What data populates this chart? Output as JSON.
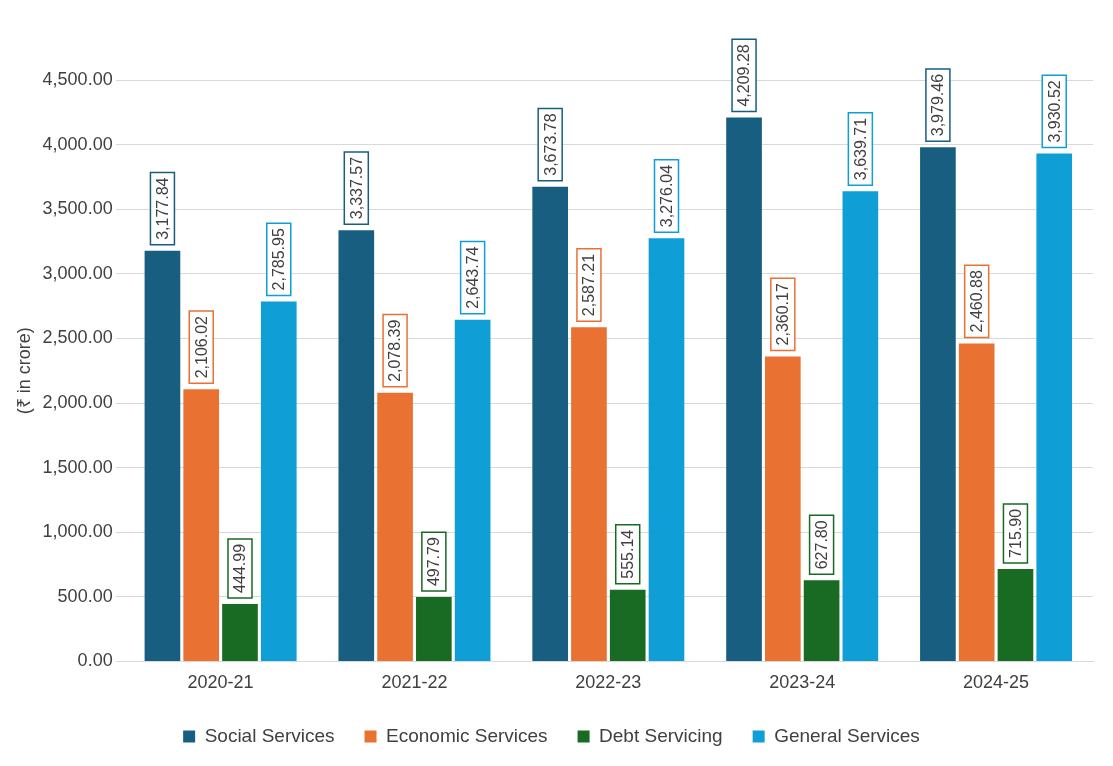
{
  "chart_data": {
    "type": "bar",
    "ylabel": "(₹ in crore)",
    "categories": [
      "2020-21",
      "2021-22",
      "2022-23",
      "2023-24",
      "2024-25"
    ],
    "series": [
      {
        "name": "Social Services",
        "color": "#185e80",
        "values": [
          3177.84,
          3337.57,
          3673.78,
          4209.28,
          3979.46
        ],
        "value_labels": [
          "3,177.84",
          "3,337.57",
          "3,673.78",
          "4,209.28",
          "3,979.46"
        ]
      },
      {
        "name": "Economic Services",
        "color": "#e97132",
        "values": [
          2106.02,
          2078.39,
          2587.21,
          2360.17,
          2460.88
        ],
        "value_labels": [
          "2,106.02",
          "2,078.39",
          "2,587.21",
          "2,360.17",
          "2,460.88"
        ]
      },
      {
        "name": "Debt Servicing",
        "color": "#196b24",
        "values": [
          444.99,
          497.79,
          555.14,
          627.8,
          715.9
        ],
        "value_labels": [
          "444.99",
          "497.79",
          "555.14",
          "627.80",
          "715.90"
        ]
      },
      {
        "name": "General Services",
        "color": "#0f9ed5",
        "values": [
          2785.95,
          2643.74,
          3276.04,
          3639.71,
          3930.52
        ],
        "value_labels": [
          "2,785.95",
          "2,643.74",
          "3,276.04",
          "3,639.71",
          "3,930.52"
        ]
      }
    ],
    "ylim": [
      0,
      4500
    ],
    "yticks": [
      {
        "value": 0,
        "label": "0.00"
      },
      {
        "value": 500,
        "label": "500.00"
      },
      {
        "value": 1000,
        "label": "1,000.00"
      },
      {
        "value": 1500,
        "label": "1,500.00"
      },
      {
        "value": 2000,
        "label": "2,000.00"
      },
      {
        "value": 2500,
        "label": "2,500.00"
      },
      {
        "value": 3000,
        "label": "3,000.00"
      },
      {
        "value": 3500,
        "label": "3,500.00"
      },
      {
        "value": 4000,
        "label": "4,000.00"
      },
      {
        "value": 4500,
        "label": "4,500.00"
      }
    ],
    "grid": "y",
    "legend": "bottom"
  }
}
